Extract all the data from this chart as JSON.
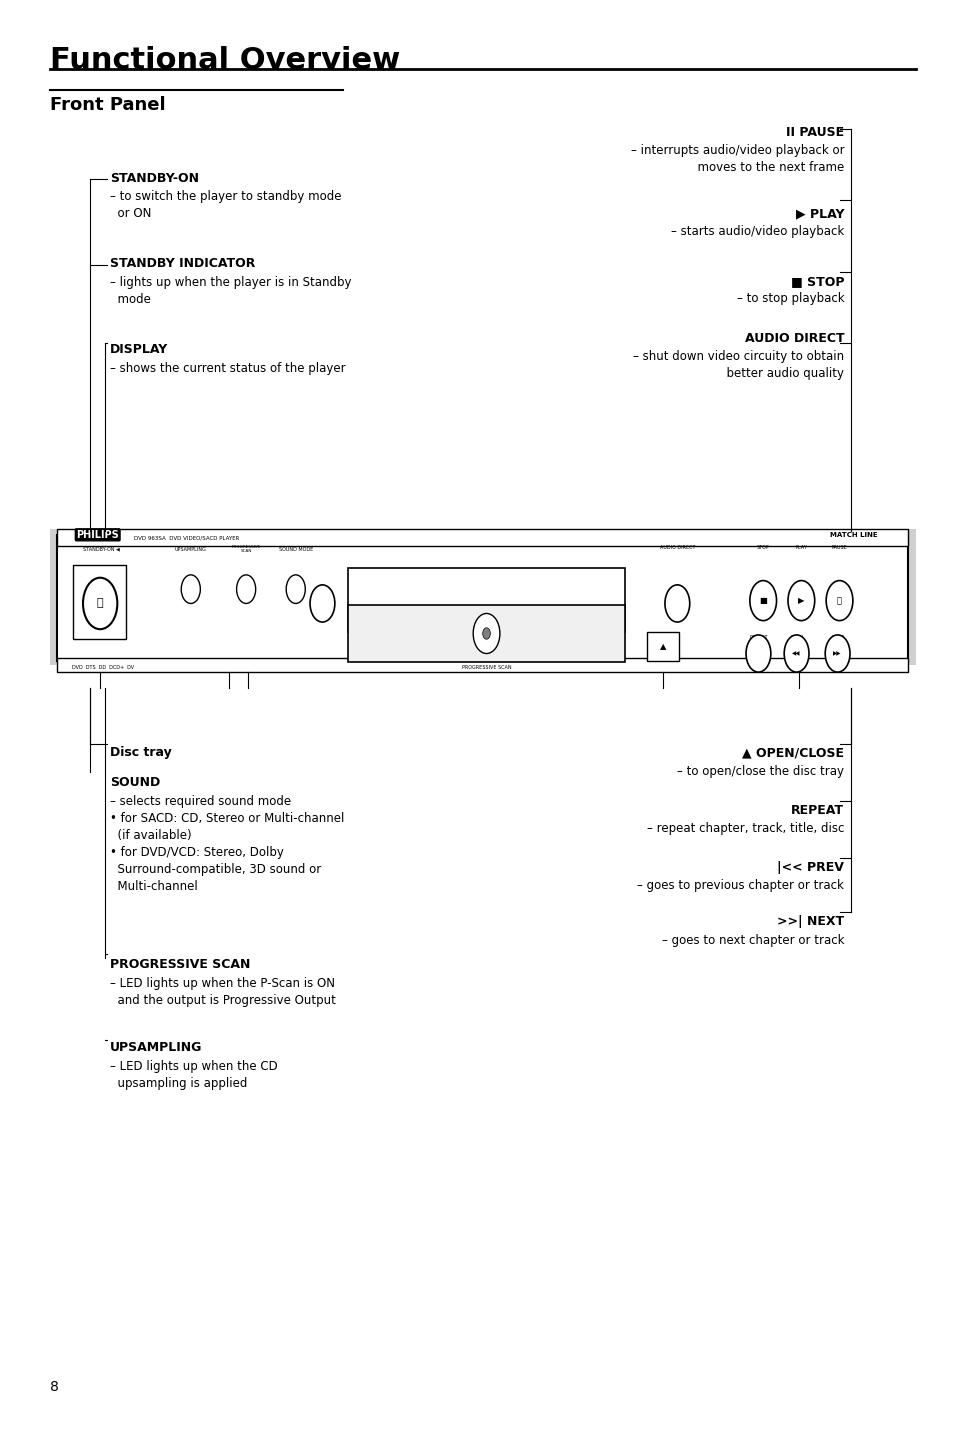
{
  "title": "Functional Overview",
  "subtitle": "Front Panel",
  "bg_color": "#ffffff",
  "title_fontsize": 22,
  "subtitle_fontsize": 13,
  "page_number": "8",
  "left_labels": [
    {
      "heading": "STANDBY-ON",
      "body": "– to switch the player to standby mode\n  or ON",
      "hx": 0.115,
      "hy": 0.215,
      "bx": 0.115,
      "by": 0.228
    },
    {
      "heading": "STANDBY INDICATOR",
      "body": "– lights up when the player is in Standby\n  mode",
      "hx": 0.115,
      "hy": 0.285,
      "bx": 0.115,
      "by": 0.298
    },
    {
      "heading": "DISPLAY",
      "body": "– shows the current status of the player",
      "hx": 0.115,
      "hy": 0.352,
      "bx": 0.115,
      "by": 0.363
    }
  ],
  "right_labels": [
    {
      "heading": "II PAUSE",
      "body": "– interrupts audio/video playback or\n  moves to the next frame",
      "hx": 0.885,
      "hy": 0.175,
      "bx": 0.885,
      "by": 0.188
    },
    {
      "heading": "► PLAY",
      "body": "– starts audio/video playback",
      "hx": 0.885,
      "hy": 0.243,
      "bx": 0.885,
      "by": 0.256
    },
    {
      "heading": "■ STOP",
      "body": "– to stop playback",
      "hx": 0.885,
      "hy": 0.295,
      "bx": 0.885,
      "by": 0.308
    },
    {
      "heading": "AUDIO DIRECT",
      "body": "– shut down video circuity to obtain\n  better audio quality",
      "hx": 0.885,
      "hy": 0.335,
      "bx": 0.885,
      "by": 0.348
    }
  ],
  "bottom_left_labels": [
    {
      "heading": "Disc tray",
      "body": "",
      "hx": 0.115,
      "hy": 0.625
    },
    {
      "heading": "SOUND",
      "body": "– selects required sound mode\n• for SACD: CD, Stereo or Multi-channel\n  (if available)\n• for DVD/VCD: Stereo, Dolby\n  Surround-compatible, 3D sound or\n  Multi-channel",
      "hx": 0.115,
      "hy": 0.658,
      "bx": 0.115,
      "by": 0.671
    },
    {
      "heading": "PROGRESSIVE SCAN",
      "body": "– LED lights up when the P-Scan is ON\n  and the output is Progressive Output",
      "hx": 0.115,
      "hy": 0.778,
      "bx": 0.115,
      "by": 0.791
    },
    {
      "heading": "UPSAMPLING",
      "body": "– LED lights up when the CD\n  upsampling is applied",
      "hx": 0.115,
      "hy": 0.838,
      "bx": 0.115,
      "by": 0.851
    }
  ],
  "bottom_right_labels": [
    {
      "heading": "▲ OPEN/CLOSE",
      "body": "– to open/close the disc tray",
      "hx": 0.885,
      "hy": 0.625,
      "bx": 0.885,
      "by": 0.638
    },
    {
      "heading": "REPEAT",
      "body": "– repeat chapter, track, title, disc",
      "hx": 0.885,
      "hy": 0.678,
      "bx": 0.885,
      "by": 0.691
    },
    {
      "heading": "|<< PREV",
      "body": "– goes to previous chapter or track",
      "hx": 0.885,
      "hy": 0.718,
      "bx": 0.885,
      "by": 0.731
    },
    {
      "heading": ">>| NEXT",
      "body": "– goes to next chapter or track",
      "hx": 0.885,
      "hy": 0.755,
      "bx": 0.885,
      "by": 0.768
    }
  ]
}
